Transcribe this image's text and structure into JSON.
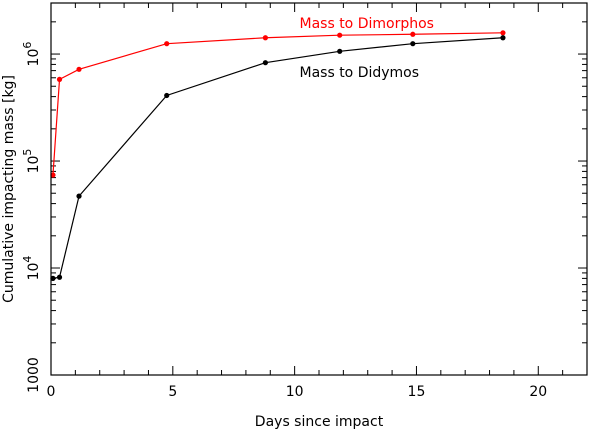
{
  "chart_data": {
    "type": "line",
    "title": "",
    "xlabel": "Days since impact",
    "ylabel_main": "Cumulative impacting mass ",
    "ylabel_unit": "[kg]",
    "xscale": "linear",
    "yscale": "log",
    "xlim": [
      0,
      22
    ],
    "ylim": [
      1000,
      3000000
    ],
    "xticks": [
      0,
      5,
      10,
      15,
      20
    ],
    "yticks": [
      {
        "value": 1000,
        "base": "1000",
        "exp": ""
      },
      {
        "value": 10000,
        "base": "10",
        "exp": "4"
      },
      {
        "value": 100000,
        "base": "10",
        "exp": "5"
      },
      {
        "value": 1000000,
        "base": "10",
        "exp": "6"
      }
    ],
    "grid": false,
    "series": [
      {
        "name": "Mass to Dimorphos",
        "color": "#ff0000",
        "x": [
          0.08,
          0.35,
          1.15,
          4.75,
          8.8,
          11.85,
          14.85,
          18.55
        ],
        "y": [
          74000,
          580000,
          720000,
          1250000,
          1420000,
          1500000,
          1530000,
          1580000
        ]
      },
      {
        "name": "Mass to Didymos",
        "color": "#000000",
        "x": [
          0.08,
          0.35,
          1.15,
          4.75,
          8.8,
          11.85,
          14.85,
          18.55
        ],
        "y": [
          8000,
          8200,
          47000,
          410000,
          830000,
          1060000,
          1250000,
          1420000
        ]
      }
    ]
  }
}
